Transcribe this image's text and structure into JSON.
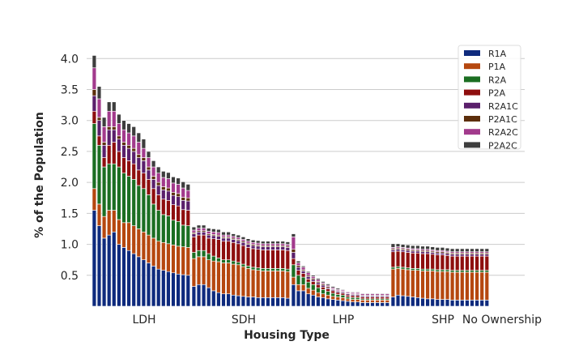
{
  "chart_data": {
    "type": "bar",
    "stacked": true,
    "xlabel": "Housing Type",
    "ylabel": "% of the Population",
    "ylim": [
      0,
      4.2
    ],
    "yticks": [
      0.5,
      1.0,
      1.5,
      2.0,
      2.5,
      3.0,
      3.5,
      4.0
    ],
    "ytick_labels": [
      "0.5",
      "1.0",
      "1.5",
      "2.0",
      "2.5",
      "3.0",
      "3.5",
      "4.0"
    ],
    "grid": true,
    "legend_position": "top-right",
    "categories": [
      "LDH",
      "SDH",
      "LHP",
      "SHP",
      "No Ownership"
    ],
    "series": [
      {
        "name": "R1A",
        "color": "#0e2a7d"
      },
      {
        "name": "P1A",
        "color": "#b5470f"
      },
      {
        "name": "R2A",
        "color": "#1b6e22"
      },
      {
        "name": "P2A",
        "color": "#8e0e0e"
      },
      {
        "name": "R2A1C",
        "color": "#5a1f6b"
      },
      {
        "name": "P2A1C",
        "color": "#5c2e0b"
      },
      {
        "name": "R2A2C",
        "color": "#a23a8c"
      },
      {
        "name": "P2A2C",
        "color": "#3d3d3d"
      }
    ],
    "groups": [
      {
        "label": "LDH",
        "bars": [
          [
            1.55,
            0.35,
            1.05,
            0.2,
            0.25,
            0.1,
            0.35,
            0.2
          ],
          [
            1.3,
            0.35,
            0.95,
            0.15,
            0.25,
            0.05,
            0.3,
            0.2
          ],
          [
            1.1,
            0.35,
            0.8,
            0.15,
            0.2,
            0.05,
            0.25,
            0.15
          ],
          [
            1.15,
            0.4,
            0.75,
            0.3,
            0.25,
            0.05,
            0.25,
            0.15
          ],
          [
            1.2,
            0.35,
            0.75,
            0.35,
            0.2,
            0.05,
            0.25,
            0.15
          ],
          [
            1.0,
            0.4,
            0.85,
            0.25,
            0.2,
            0.05,
            0.2,
            0.15
          ],
          [
            0.95,
            0.4,
            0.8,
            0.25,
            0.2,
            0.05,
            0.2,
            0.15
          ],
          [
            0.9,
            0.45,
            0.75,
            0.25,
            0.2,
            0.05,
            0.2,
            0.15
          ],
          [
            0.85,
            0.45,
            0.75,
            0.25,
            0.2,
            0.05,
            0.2,
            0.15
          ],
          [
            0.8,
            0.45,
            0.7,
            0.25,
            0.2,
            0.05,
            0.2,
            0.15
          ],
          [
            0.75,
            0.45,
            0.7,
            0.25,
            0.2,
            0.05,
            0.15,
            0.15
          ],
          [
            0.7,
            0.45,
            0.65,
            0.25,
            0.15,
            0.05,
            0.15,
            0.1
          ],
          [
            0.65,
            0.45,
            0.55,
            0.25,
            0.15,
            0.05,
            0.15,
            0.1
          ],
          [
            0.6,
            0.45,
            0.5,
            0.25,
            0.15,
            0.05,
            0.15,
            0.1
          ],
          [
            0.58,
            0.45,
            0.45,
            0.25,
            0.15,
            0.05,
            0.15,
            0.1
          ],
          [
            0.56,
            0.45,
            0.45,
            0.25,
            0.15,
            0.05,
            0.15,
            0.1
          ],
          [
            0.54,
            0.45,
            0.4,
            0.25,
            0.15,
            0.05,
            0.15,
            0.1
          ],
          [
            0.52,
            0.45,
            0.4,
            0.25,
            0.15,
            0.05,
            0.15,
            0.1
          ],
          [
            0.51,
            0.45,
            0.35,
            0.25,
            0.15,
            0.05,
            0.15,
            0.1
          ],
          [
            0.5,
            0.45,
            0.35,
            0.25,
            0.15,
            0.05,
            0.12,
            0.1
          ]
        ]
      },
      {
        "label": "SDH",
        "bars": [
          [
            0.32,
            0.45,
            0.1,
            0.25,
            0.05,
            0.02,
            0.04,
            0.05
          ],
          [
            0.35,
            0.45,
            0.1,
            0.25,
            0.05,
            0.02,
            0.04,
            0.05
          ],
          [
            0.35,
            0.45,
            0.1,
            0.25,
            0.05,
            0.02,
            0.04,
            0.05
          ],
          [
            0.3,
            0.45,
            0.1,
            0.25,
            0.05,
            0.02,
            0.04,
            0.05
          ],
          [
            0.25,
            0.48,
            0.08,
            0.28,
            0.05,
            0.02,
            0.04,
            0.05
          ],
          [
            0.22,
            0.5,
            0.06,
            0.3,
            0.05,
            0.02,
            0.04,
            0.05
          ],
          [
            0.2,
            0.5,
            0.05,
            0.3,
            0.05,
            0.02,
            0.03,
            0.05
          ],
          [
            0.2,
            0.5,
            0.05,
            0.3,
            0.05,
            0.02,
            0.03,
            0.05
          ],
          [
            0.18,
            0.5,
            0.05,
            0.3,
            0.05,
            0.02,
            0.03,
            0.04
          ],
          [
            0.17,
            0.5,
            0.04,
            0.3,
            0.05,
            0.02,
            0.03,
            0.04
          ],
          [
            0.16,
            0.48,
            0.04,
            0.3,
            0.05,
            0.02,
            0.03,
            0.04
          ],
          [
            0.15,
            0.46,
            0.04,
            0.3,
            0.05,
            0.02,
            0.03,
            0.04
          ],
          [
            0.15,
            0.44,
            0.04,
            0.3,
            0.05,
            0.02,
            0.03,
            0.04
          ],
          [
            0.14,
            0.44,
            0.04,
            0.3,
            0.05,
            0.02,
            0.03,
            0.04
          ],
          [
            0.14,
            0.43,
            0.04,
            0.3,
            0.05,
            0.02,
            0.03,
            0.04
          ],
          [
            0.14,
            0.43,
            0.04,
            0.3,
            0.05,
            0.02,
            0.03,
            0.04
          ],
          [
            0.14,
            0.43,
            0.04,
            0.3,
            0.05,
            0.02,
            0.03,
            0.04
          ],
          [
            0.14,
            0.43,
            0.04,
            0.3,
            0.05,
            0.02,
            0.03,
            0.04
          ],
          [
            0.14,
            0.43,
            0.04,
            0.3,
            0.05,
            0.02,
            0.03,
            0.04
          ],
          [
            0.13,
            0.43,
            0.04,
            0.3,
            0.05,
            0.02,
            0.03,
            0.04
          ]
        ]
      },
      {
        "label": "LHP",
        "bars": [
          [
            0.35,
            0.12,
            0.2,
            0.1,
            0.1,
            0.05,
            0.2,
            0.05
          ],
          [
            0.25,
            0.1,
            0.15,
            0.08,
            0.05,
            0.03,
            0.04,
            0.03
          ],
          [
            0.25,
            0.1,
            0.12,
            0.06,
            0.04,
            0.02,
            0.04,
            0.02
          ],
          [
            0.2,
            0.09,
            0.1,
            0.05,
            0.04,
            0.02,
            0.04,
            0.02
          ],
          [
            0.18,
            0.08,
            0.09,
            0.05,
            0.03,
            0.02,
            0.03,
            0.02
          ],
          [
            0.15,
            0.07,
            0.08,
            0.05,
            0.03,
            0.02,
            0.03,
            0.02
          ],
          [
            0.14,
            0.06,
            0.07,
            0.04,
            0.03,
            0.02,
            0.02,
            0.02
          ],
          [
            0.12,
            0.06,
            0.06,
            0.04,
            0.02,
            0.02,
            0.02,
            0.02
          ],
          [
            0.11,
            0.05,
            0.05,
            0.04,
            0.02,
            0.01,
            0.02,
            0.02
          ],
          [
            0.1,
            0.05,
            0.04,
            0.03,
            0.02,
            0.01,
            0.02,
            0.02
          ],
          [
            0.09,
            0.05,
            0.04,
            0.03,
            0.02,
            0.01,
            0.02,
            0.01
          ],
          [
            0.08,
            0.04,
            0.03,
            0.03,
            0.02,
            0.01,
            0.02,
            0.01
          ],
          [
            0.07,
            0.04,
            0.03,
            0.03,
            0.02,
            0.01,
            0.02,
            0.01
          ],
          [
            0.07,
            0.04,
            0.03,
            0.03,
            0.02,
            0.01,
            0.02,
            0.01
          ],
          [
            0.06,
            0.04,
            0.02,
            0.03,
            0.02,
            0.01,
            0.02,
            0.01
          ],
          [
            0.06,
            0.04,
            0.02,
            0.03,
            0.02,
            0.01,
            0.02,
            0.01
          ],
          [
            0.06,
            0.04,
            0.02,
            0.03,
            0.02,
            0.01,
            0.02,
            0.01
          ],
          [
            0.06,
            0.04,
            0.02,
            0.03,
            0.02,
            0.01,
            0.02,
            0.01
          ],
          [
            0.06,
            0.04,
            0.02,
            0.03,
            0.02,
            0.01,
            0.02,
            0.01
          ],
          [
            0.06,
            0.04,
            0.02,
            0.03,
            0.02,
            0.01,
            0.02,
            0.01
          ]
        ]
      },
      {
        "label": "SHP",
        "bars": [
          [
            0.15,
            0.45,
            0.03,
            0.25,
            0.03,
            0.02,
            0.02,
            0.06
          ],
          [
            0.18,
            0.43,
            0.03,
            0.25,
            0.03,
            0.02,
            0.02,
            0.05
          ],
          [
            0.17,
            0.43,
            0.03,
            0.25,
            0.03,
            0.02,
            0.02,
            0.05
          ],
          [
            0.16,
            0.43,
            0.03,
            0.25,
            0.03,
            0.02,
            0.02,
            0.05
          ],
          [
            0.15,
            0.43,
            0.03,
            0.25,
            0.03,
            0.02,
            0.02,
            0.05
          ],
          [
            0.14,
            0.44,
            0.03,
            0.25,
            0.03,
            0.02,
            0.02,
            0.05
          ],
          [
            0.13,
            0.44,
            0.03,
            0.25,
            0.03,
            0.02,
            0.02,
            0.05
          ],
          [
            0.12,
            0.45,
            0.03,
            0.25,
            0.03,
            0.02,
            0.02,
            0.05
          ],
          [
            0.12,
            0.45,
            0.03,
            0.24,
            0.03,
            0.02,
            0.02,
            0.05
          ],
          [
            0.11,
            0.45,
            0.03,
            0.24,
            0.03,
            0.02,
            0.02,
            0.05
          ],
          [
            0.11,
            0.45,
            0.03,
            0.24,
            0.03,
            0.02,
            0.02,
            0.05
          ],
          [
            0.11,
            0.45,
            0.03,
            0.23,
            0.03,
            0.02,
            0.02,
            0.05
          ],
          [
            0.1,
            0.45,
            0.03,
            0.23,
            0.03,
            0.02,
            0.02,
            0.05
          ],
          [
            0.1,
            0.45,
            0.03,
            0.23,
            0.03,
            0.02,
            0.02,
            0.05
          ],
          [
            0.1,
            0.45,
            0.03,
            0.23,
            0.03,
            0.02,
            0.02,
            0.05
          ],
          [
            0.1,
            0.45,
            0.03,
            0.23,
            0.03,
            0.02,
            0.02,
            0.05
          ],
          [
            0.1,
            0.45,
            0.03,
            0.23,
            0.03,
            0.02,
            0.02,
            0.05
          ],
          [
            0.1,
            0.45,
            0.03,
            0.23,
            0.03,
            0.02,
            0.02,
            0.05
          ],
          [
            0.1,
            0.45,
            0.03,
            0.23,
            0.03,
            0.02,
            0.02,
            0.05
          ],
          [
            0.1,
            0.45,
            0.03,
            0.23,
            0.03,
            0.02,
            0.02,
            0.05
          ]
        ]
      },
      {
        "label": "No Ownership",
        "bars": []
      }
    ]
  }
}
